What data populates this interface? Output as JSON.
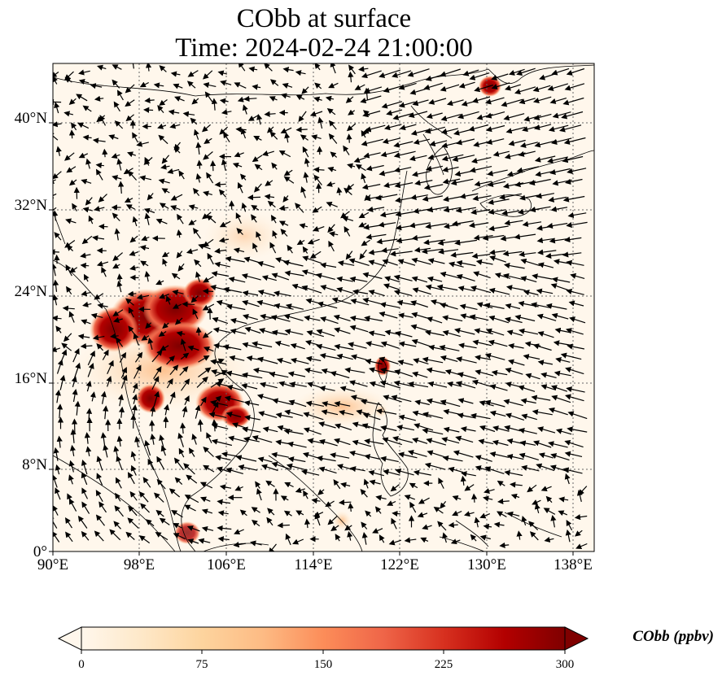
{
  "title": {
    "line1": "CObb at surface",
    "line2": "Time: 2024-02-24 21:00:00"
  },
  "map": {
    "projection": "PlateCarree",
    "lon_range": [
      90,
      140
    ],
    "lat_range": [
      0,
      45
    ],
    "gridlines": "dotted",
    "x_ticks": [
      "90°E",
      "98°E",
      "106°E",
      "114°E",
      "122°E",
      "130°E",
      "138°E"
    ],
    "y_ticks": [
      "0°",
      "8°N",
      "16°N",
      "24°N",
      "32°N",
      "40°N"
    ],
    "field": "CObb",
    "colormap": "OrRd",
    "high_value_regions": [
      "northern Laos / Myanmar / Thailand",
      "Cambodia",
      "Taiwan (south)",
      "Vladivostok area"
    ],
    "vectors": "wind arrows"
  },
  "colorbar": {
    "label": "CObb (ppbv)",
    "ticks": [
      "0",
      "75",
      "150",
      "225",
      "300"
    ],
    "min": 0,
    "max": 300,
    "extend": "both",
    "colors": [
      "#fff7ec",
      "#fee8c8",
      "#fdd49e",
      "#fdbb84",
      "#fc8d59",
      "#ef6548",
      "#d7301f",
      "#b30000",
      "#7f0000"
    ]
  }
}
